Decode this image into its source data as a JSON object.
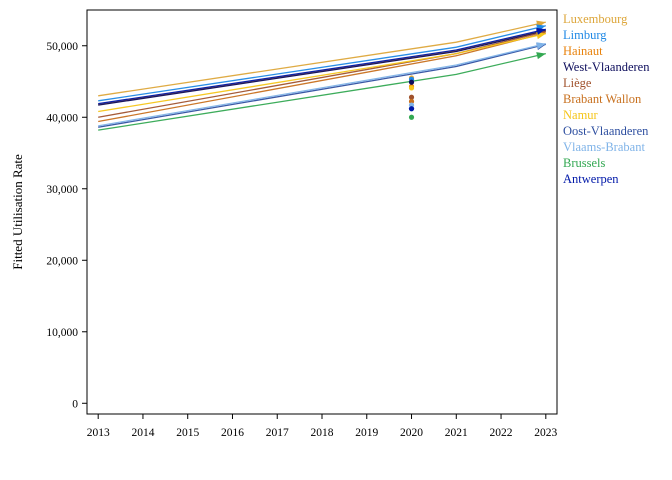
{
  "chart_data": {
    "type": "line",
    "title": "",
    "xlabel": "",
    "ylabel": "Fitted Utilisation Rate",
    "x": [
      2013,
      2021,
      2023
    ],
    "xticks": [
      2013,
      2014,
      2015,
      2016,
      2017,
      2018,
      2019,
      2020,
      2021,
      2022,
      2023
    ],
    "xlim": [
      2012.75,
      2023.25
    ],
    "yticks": [
      0,
      10000,
      20000,
      30000,
      40000,
      50000
    ],
    "ytick_labels": [
      "0",
      "10,000",
      "20,000",
      "30,000",
      "40,000",
      "50,000"
    ],
    "ylim": [
      -1500,
      55000
    ],
    "grid": false,
    "legend_position": "right-top",
    "series": [
      {
        "name": "Luxembourg",
        "color": "#DDA63A",
        "values": [
          43000,
          50500,
          53300
        ],
        "point_2020": 45500
      },
      {
        "name": "Limburg",
        "color": "#1E88E5",
        "values": [
          42300,
          49800,
          52800
        ],
        "point_2020": 45300
      },
      {
        "name": "Hainaut",
        "color": "#E8820C",
        "values": [
          41800,
          49300,
          52200
        ],
        "point_2020": 44300
      },
      {
        "name": "West-Vlaanderen",
        "color": "#0D0D5C",
        "values": [
          41700,
          49200,
          52100
        ],
        "point_2020": 44900
      },
      {
        "name": "Liège",
        "color": "#A0522D",
        "values": [
          40000,
          48900,
          52000
        ],
        "point_2020": 42800
      },
      {
        "name": "Brabant Wallon",
        "color": "#C8701E",
        "values": [
          39400,
          48600,
          51800
        ],
        "point_2020": 42200
      },
      {
        "name": "Namur",
        "color": "#F5C518",
        "values": [
          40800,
          48900,
          51700
        ],
        "point_2020": 44100
      },
      {
        "name": "Oost-Vlaanderen",
        "color": "#2E4FA0",
        "values": [
          38600,
          47100,
          50200
        ],
        "point_2020": 41200
      },
      {
        "name": "Vlaams-Brabant",
        "color": "#7FB3E8",
        "values": [
          38800,
          47300,
          50300
        ],
        "point_2020": 41700
      },
      {
        "name": "Brussels",
        "color": "#33A852",
        "values": [
          38200,
          46000,
          48900
        ],
        "point_2020": 40000
      },
      {
        "name": "Antwerpen",
        "color": "#0018A8",
        "values": [
          41900,
          49400,
          52300
        ],
        "point_2020": 41200
      }
    ]
  }
}
